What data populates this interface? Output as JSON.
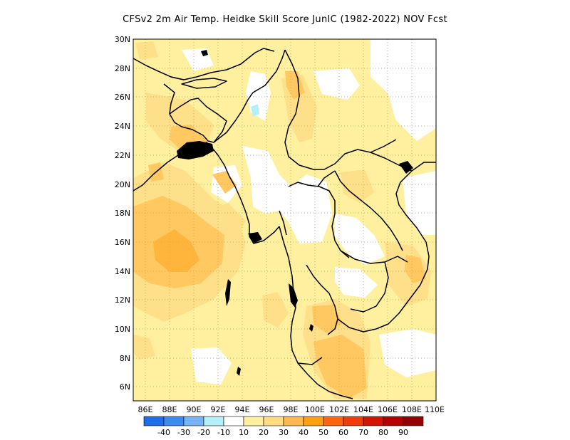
{
  "title": "CFSv2  2m Air Temp. Heidke Skill Score JunIC (1982-2022) NOV Fcst",
  "map": {
    "lat_labels": [
      "30N",
      "28N",
      "26N",
      "24N",
      "22N",
      "20N",
      "18N",
      "16N",
      "14N",
      "12N",
      "10N",
      "8N",
      "6N"
    ],
    "lon_labels": [
      "86E",
      "88E",
      "90E",
      "92E",
      "94E",
      "96E",
      "98E",
      "100E",
      "102E",
      "104E",
      "106E",
      "108E",
      "110E"
    ],
    "lon_range": [
      85,
      110
    ],
    "lat_range": [
      5,
      30
    ],
    "grid": "dotted"
  },
  "colorbar": {
    "labels": [
      "-40",
      "-30",
      "-20",
      "-10",
      "10",
      "20",
      "30",
      "40",
      "50",
      "60",
      "70",
      "80",
      "90"
    ],
    "colors": [
      "#1e6ee8",
      "#3c8cf0",
      "#78b4f5",
      "#b4f0fa",
      "#ffffff",
      "#fff0a0",
      "#ffdc82",
      "#ffb850",
      "#ffa014",
      "#ff6410",
      "#f03c0a",
      "#d21405",
      "#b40000",
      "#960000"
    ]
  },
  "shading_colors": {
    "level_10": "#fff0a0",
    "level_20": "#ffe08a",
    "level_30": "#ffc860",
    "level_40": "#ffb43c",
    "negative": "#b4f0fa"
  }
}
